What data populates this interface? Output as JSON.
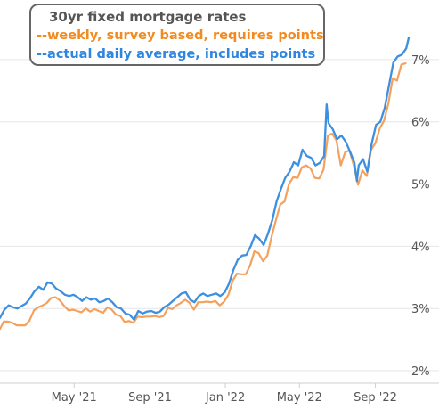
{
  "chart_data": {
    "type": "line",
    "title": "30yr fixed mortgage rates",
    "x_domain": [
      "2021-01-01",
      "2022-10-25"
    ],
    "ylim": [
      1.8,
      7.7
    ],
    "y_ticks": [
      2,
      3,
      4,
      5,
      6,
      7
    ],
    "y_tick_labels": [
      "2%",
      "3%",
      "4%",
      "5%",
      "6%",
      "7%"
    ],
    "y_axis_position": "right",
    "x_ticks": [
      "2021-05-01",
      "2021-09-01",
      "2022-01-01",
      "2022-05-01",
      "2022-09-01"
    ],
    "x_tick_labels": [
      "May '21",
      "Sep '21",
      "Jan '22",
      "May '22",
      "Sep '22"
    ],
    "grid": "horizontal",
    "legend_position": "top-left",
    "series": [
      {
        "name": "--weekly, survey based, requires points",
        "color": "#f5a15e",
        "x": [
          "2021-01-01",
          "2021-01-07",
          "2021-01-14",
          "2021-01-21",
          "2021-01-28",
          "2021-02-04",
          "2021-02-11",
          "2021-02-18",
          "2021-02-25",
          "2021-03-04",
          "2021-03-11",
          "2021-03-18",
          "2021-03-25",
          "2021-04-01",
          "2021-04-08",
          "2021-04-15",
          "2021-04-22",
          "2021-04-29",
          "2021-05-06",
          "2021-05-13",
          "2021-05-20",
          "2021-05-27",
          "2021-06-03",
          "2021-06-10",
          "2021-06-17",
          "2021-06-24",
          "2021-07-01",
          "2021-07-08",
          "2021-07-15",
          "2021-07-22",
          "2021-07-29",
          "2021-08-05",
          "2021-08-12",
          "2021-08-19",
          "2021-08-26",
          "2021-09-02",
          "2021-09-09",
          "2021-09-16",
          "2021-09-23",
          "2021-09-30",
          "2021-10-07",
          "2021-10-14",
          "2021-10-21",
          "2021-10-28",
          "2021-11-04",
          "2021-11-11",
          "2021-11-18",
          "2021-11-25",
          "2021-12-02",
          "2021-12-09",
          "2021-12-16",
          "2021-12-23",
          "2021-12-30",
          "2022-01-06",
          "2022-01-13",
          "2022-01-20",
          "2022-01-27",
          "2022-02-03",
          "2022-02-10",
          "2022-02-17",
          "2022-02-24",
          "2022-03-03",
          "2022-03-10",
          "2022-03-17",
          "2022-03-24",
          "2022-03-31",
          "2022-04-07",
          "2022-04-14",
          "2022-04-21",
          "2022-04-28",
          "2022-05-05",
          "2022-05-12",
          "2022-05-19",
          "2022-05-26",
          "2022-06-02",
          "2022-06-09",
          "2022-06-16",
          "2022-06-23",
          "2022-06-30",
          "2022-07-07",
          "2022-07-14",
          "2022-07-21",
          "2022-07-28",
          "2022-08-04",
          "2022-08-11",
          "2022-08-18",
          "2022-08-25",
          "2022-09-01",
          "2022-09-08",
          "2022-09-15",
          "2022-09-22",
          "2022-09-29",
          "2022-10-06",
          "2022-10-13",
          "2022-10-20"
        ],
        "y": [
          2.67,
          2.79,
          2.79,
          2.77,
          2.73,
          2.73,
          2.73,
          2.81,
          2.97,
          3.02,
          3.05,
          3.09,
          3.17,
          3.18,
          3.13,
          3.04,
          2.97,
          2.98,
          2.96,
          2.94,
          3.0,
          2.95,
          2.99,
          2.96,
          2.93,
          3.02,
          2.98,
          2.9,
          2.88,
          2.78,
          2.8,
          2.77,
          2.87,
          2.86,
          2.87,
          2.87,
          2.88,
          2.86,
          2.88,
          3.01,
          2.99,
          3.05,
          3.09,
          3.14,
          3.09,
          2.98,
          3.1,
          3.1,
          3.11,
          3.1,
          3.12,
          3.05,
          3.11,
          3.22,
          3.45,
          3.56,
          3.55,
          3.55,
          3.69,
          3.92,
          3.89,
          3.76,
          3.85,
          4.16,
          4.42,
          4.67,
          4.72,
          5.0,
          5.11,
          5.1,
          5.27,
          5.3,
          5.25,
          5.1,
          5.09,
          5.23,
          5.78,
          5.81,
          5.7,
          5.3,
          5.51,
          5.54,
          5.3,
          4.99,
          5.22,
          5.13,
          5.55,
          5.66,
          5.89,
          6.02,
          6.29,
          6.7,
          6.66,
          6.92,
          6.94
        ]
      },
      {
        "name": "--actual daily average, includes points",
        "color": "#3d8fe0",
        "x": [
          "2021-01-01",
          "2021-01-08",
          "2021-01-15",
          "2021-01-22",
          "2021-01-29",
          "2021-02-05",
          "2021-02-12",
          "2021-02-19",
          "2021-02-26",
          "2021-03-05",
          "2021-03-12",
          "2021-03-19",
          "2021-03-26",
          "2021-04-02",
          "2021-04-09",
          "2021-04-16",
          "2021-04-23",
          "2021-04-30",
          "2021-05-07",
          "2021-05-14",
          "2021-05-21",
          "2021-05-28",
          "2021-06-04",
          "2021-06-11",
          "2021-06-18",
          "2021-06-25",
          "2021-07-02",
          "2021-07-09",
          "2021-07-16",
          "2021-07-23",
          "2021-07-30",
          "2021-08-06",
          "2021-08-13",
          "2021-08-20",
          "2021-08-27",
          "2021-09-03",
          "2021-09-10",
          "2021-09-17",
          "2021-09-24",
          "2021-10-01",
          "2021-10-08",
          "2021-10-15",
          "2021-10-22",
          "2021-10-29",
          "2021-11-05",
          "2021-11-12",
          "2021-11-19",
          "2021-11-26",
          "2021-12-03",
          "2021-12-10",
          "2021-12-17",
          "2021-12-24",
          "2021-12-31",
          "2022-01-07",
          "2022-01-14",
          "2022-01-21",
          "2022-01-28",
          "2022-02-04",
          "2022-02-11",
          "2022-02-18",
          "2022-02-25",
          "2022-03-04",
          "2022-03-11",
          "2022-03-18",
          "2022-03-25",
          "2022-04-01",
          "2022-04-08",
          "2022-04-15",
          "2022-04-22",
          "2022-04-29",
          "2022-05-06",
          "2022-05-13",
          "2022-05-20",
          "2022-05-27",
          "2022-06-03",
          "2022-06-10",
          "2022-06-14",
          "2022-06-17",
          "2022-06-24",
          "2022-07-01",
          "2022-07-08",
          "2022-07-15",
          "2022-07-22",
          "2022-07-29",
          "2022-08-02",
          "2022-08-05",
          "2022-08-12",
          "2022-08-19",
          "2022-08-26",
          "2022-09-02",
          "2022-09-09",
          "2022-09-16",
          "2022-09-23",
          "2022-09-30",
          "2022-10-07",
          "2022-10-14",
          "2022-10-21",
          "2022-10-25"
        ],
        "y": [
          2.85,
          2.98,
          3.05,
          3.02,
          3.0,
          3.04,
          3.08,
          3.17,
          3.28,
          3.35,
          3.3,
          3.42,
          3.4,
          3.32,
          3.28,
          3.22,
          3.2,
          3.22,
          3.18,
          3.12,
          3.18,
          3.14,
          3.16,
          3.1,
          3.12,
          3.16,
          3.1,
          3.02,
          3.0,
          2.92,
          2.9,
          2.82,
          2.96,
          2.92,
          2.95,
          2.96,
          2.93,
          2.95,
          3.02,
          3.06,
          3.12,
          3.18,
          3.24,
          3.26,
          3.14,
          3.1,
          3.2,
          3.24,
          3.2,
          3.22,
          3.24,
          3.2,
          3.26,
          3.4,
          3.62,
          3.78,
          3.85,
          3.86,
          4.0,
          4.18,
          4.12,
          4.02,
          4.2,
          4.42,
          4.72,
          4.92,
          5.1,
          5.2,
          5.35,
          5.3,
          5.55,
          5.45,
          5.42,
          5.3,
          5.34,
          5.45,
          6.28,
          5.98,
          5.88,
          5.72,
          5.78,
          5.68,
          5.52,
          5.34,
          5.05,
          5.3,
          5.4,
          5.2,
          5.65,
          5.95,
          6.0,
          6.22,
          6.58,
          6.95,
          7.05,
          7.08,
          7.18,
          7.35
        ]
      }
    ]
  }
}
